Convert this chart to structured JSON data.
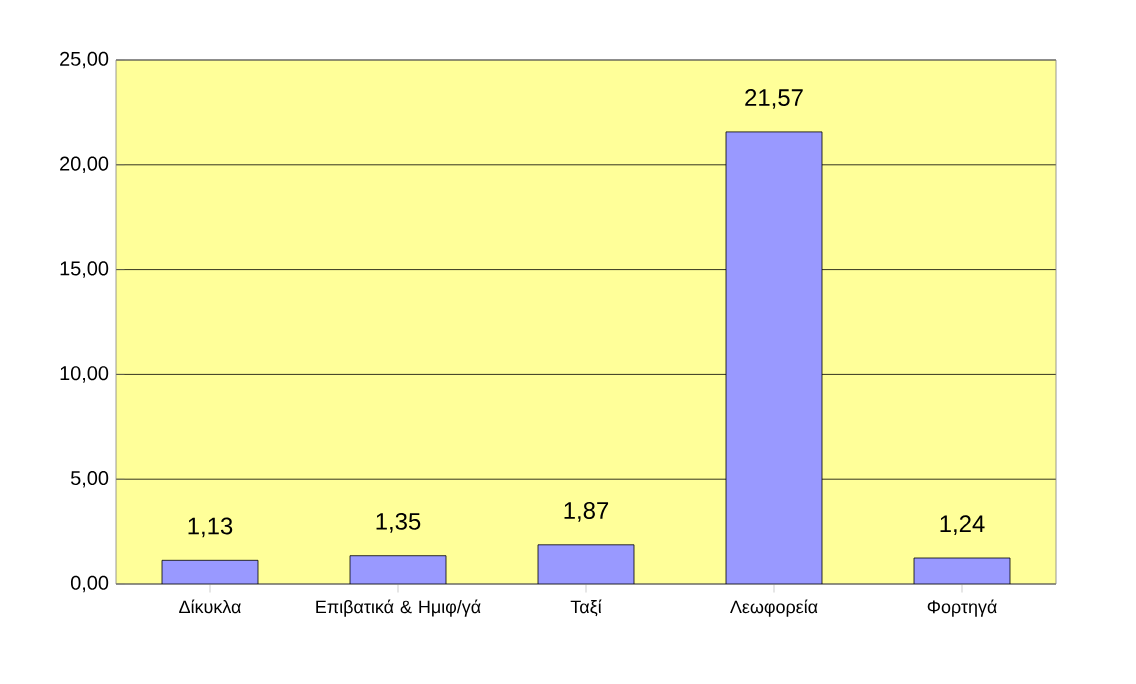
{
  "chart_data": {
    "type": "bar",
    "categories": [
      "Δίκυκλα",
      "Επιβατικά & Ημιφ/γά",
      "Ταξί",
      "Λεωφορεία",
      "Φορτηγά"
    ],
    "values": [
      1.13,
      1.35,
      1.87,
      21.57,
      1.24
    ],
    "value_labels": [
      "1,13",
      "1,35",
      "1,87",
      "21,57",
      "1,24"
    ],
    "color": "#9999ff",
    "ylim": [
      0,
      25
    ],
    "yticks": [
      {
        "value": 0,
        "label": "0,00"
      },
      {
        "value": 5,
        "label": "5,00"
      },
      {
        "value": 10,
        "label": "10,00"
      },
      {
        "value": 15,
        "label": "15,00"
      },
      {
        "value": 20,
        "label": "20,00"
      },
      {
        "value": 25,
        "label": "25,00"
      }
    ],
    "grid": "y"
  }
}
